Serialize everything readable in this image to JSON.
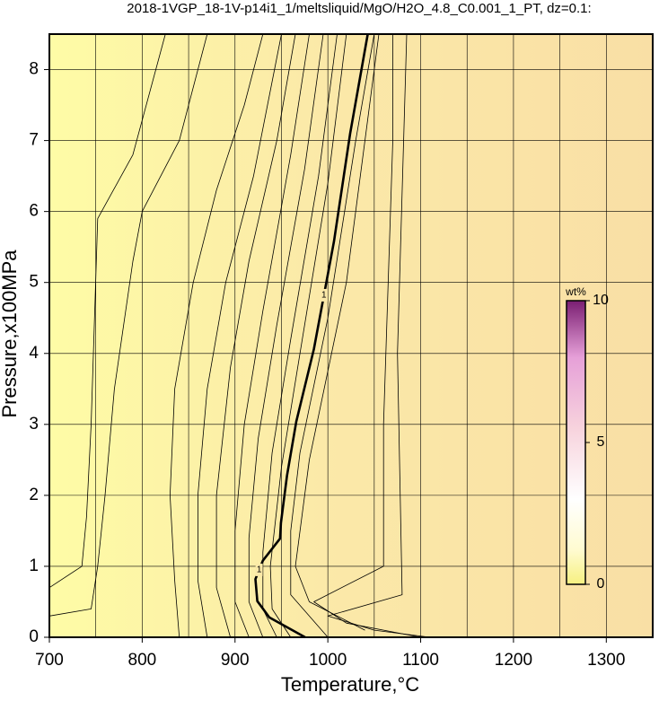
{
  "chart_data": {
    "type": "contour",
    "title": "2018-1VGP_18-1V-p14i1_1/meltsliquid/MgO/H2O_4.8_C0.001_1_PT, dz=0.1:",
    "x_label": "Temperature,°C",
    "y_label": "Pressure,x100MPa",
    "xlim": [
      700,
      1350
    ],
    "ylim": [
      0,
      8.5
    ],
    "xticks": [
      700,
      800,
      900,
      1000,
      1100,
      1200,
      1300
    ],
    "yticks": [
      0,
      1,
      2,
      3,
      4,
      5,
      6,
      7,
      8
    ],
    "xgrid": [
      750,
      800,
      850,
      900,
      950,
      1000,
      1050,
      1100,
      1150,
      1200,
      1250,
      1300
    ],
    "ygrid": [
      1,
      2,
      3,
      4,
      5,
      6,
      7,
      8
    ],
    "contours": [
      {
        "x": [
          700,
          735,
          740,
          745,
          752,
          790,
          825
        ],
        "y": [
          0.7,
          1.0,
          1.7,
          3.0,
          5.9,
          6.8,
          8.5
        ]
      },
      {
        "x": [
          700,
          745,
          752,
          760,
          770,
          790,
          800,
          840,
          870
        ],
        "y": [
          0.3,
          0.4,
          1.0,
          2.0,
          3.5,
          5.3,
          6.0,
          7.0,
          8.5
        ]
      },
      {
        "x": [
          840,
          835,
          830,
          835,
          855,
          880,
          910,
          930
        ],
        "y": [
          0,
          0.8,
          2.0,
          3.5,
          5.0,
          6.3,
          7.5,
          8.5
        ]
      },
      {
        "x": [
          870,
          860,
          860,
          870,
          890,
          920,
          950
        ],
        "y": [
          0,
          0.8,
          2.0,
          3.5,
          5.0,
          6.5,
          8.5
        ]
      },
      {
        "x": [
          895,
          880,
          880,
          895,
          915,
          945,
          965
        ],
        "y": [
          0,
          0.7,
          2.0,
          3.8,
          5.3,
          7.0,
          8.5
        ]
      },
      {
        "x": [
          915,
          900,
          900,
          910,
          930,
          960,
          980
        ],
        "y": [
          0,
          0.5,
          1.5,
          3.0,
          4.6,
          6.8,
          8.5
        ]
      },
      {
        "x": [
          930,
          915,
          915,
          925,
          945,
          975,
          995
        ],
        "y": [
          0,
          0.5,
          1.4,
          2.8,
          4.4,
          6.6,
          8.5
        ]
      },
      {
        "x": [
          945,
          930,
          930,
          940,
          960,
          990,
          1010
        ],
        "y": [
          0,
          0.4,
          1.2,
          2.6,
          4.2,
          6.5,
          8.5
        ]
      },
      {
        "x": [
          960,
          940,
          938,
          950,
          970,
          1000,
          1020
        ],
        "y": [
          0,
          0.4,
          1.0,
          2.4,
          4.0,
          6.4,
          8.5
        ]
      },
      {
        "x": [
          1000,
          960,
          960,
          970,
          1000,
          1030,
          1050
        ],
        "y": [
          0,
          0.6,
          1.5,
          2.6,
          4.5,
          7.0,
          8.5
        ]
      },
      {
        "x": [
          1040,
          980,
          965,
          980,
          1020,
          1055
        ],
        "y": [
          0.1,
          0.5,
          1.0,
          2.5,
          5.0,
          8.5
        ]
      },
      {
        "x": [
          1100,
          1020,
          985,
          1060,
          1060,
          1070,
          1070
        ],
        "y": [
          0,
          0.2,
          0.5,
          1.0,
          3.0,
          7.0,
          8.5
        ]
      },
      {
        "x": [
          1110,
          1050,
          1000,
          1080,
          1075,
          1085
        ],
        "y": [
          0,
          0.1,
          0.3,
          0.6,
          4.0,
          8.5
        ]
      }
    ],
    "thick_contour": {
      "label": "1",
      "x": [
        975.6,
        937,
        924,
        922,
        930,
        948.5,
        949.5,
        956,
        966,
        985,
        1006.6,
        1024,
        1043
      ],
      "y": [
        0,
        0.28,
        0.51,
        0.82,
        1.08,
        1.39,
        1.61,
        2.28,
        3.04,
        4.06,
        5.58,
        7.1,
        8.5
      ]
    },
    "colorbar": {
      "label": "wt%",
      "lim": [
        0,
        10
      ],
      "ticks": [
        0,
        5,
        10
      ]
    }
  }
}
